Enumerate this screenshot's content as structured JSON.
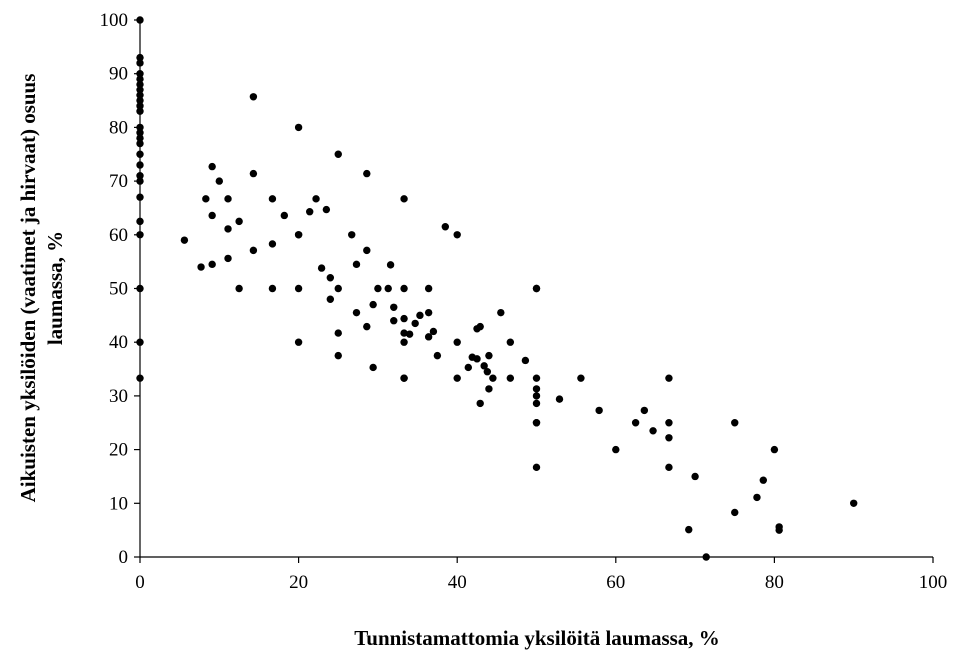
{
  "chart_data": {
    "type": "scatter",
    "title": "",
    "xlabel": "Tunnistamattomia yksilöitä laumassa, %",
    "ylabel_line1": "Aikuisten yksilöiden (vaatimet ja hirvaat) osuus",
    "ylabel_line2": "laumassa, %",
    "xlim": [
      0,
      100
    ],
    "ylim": [
      0,
      100
    ],
    "xticks": [
      0,
      20,
      40,
      60,
      80,
      100
    ],
    "yticks": [
      0,
      10,
      20,
      30,
      40,
      50,
      60,
      70,
      80,
      90,
      100
    ],
    "grid": false,
    "legend": "none",
    "marker_color": "#000000",
    "points": [
      [
        0,
        100
      ],
      [
        0,
        93
      ],
      [
        0,
        92
      ],
      [
        0,
        90
      ],
      [
        0,
        89
      ],
      [
        0,
        88
      ],
      [
        0,
        87
      ],
      [
        0,
        86
      ],
      [
        0,
        85
      ],
      [
        0,
        84
      ],
      [
        0,
        83
      ],
      [
        0,
        80
      ],
      [
        0,
        79
      ],
      [
        0,
        78
      ],
      [
        0,
        77
      ],
      [
        0,
        75
      ],
      [
        0,
        73
      ],
      [
        0,
        71
      ],
      [
        0,
        70
      ],
      [
        0,
        67
      ],
      [
        0,
        62.5
      ],
      [
        0,
        60
      ],
      [
        0,
        50
      ],
      [
        0,
        40
      ],
      [
        0,
        33.3
      ],
      [
        5.6,
        59
      ],
      [
        7.7,
        54
      ],
      [
        8.3,
        66.7
      ],
      [
        9.1,
        54.5
      ],
      [
        9.1,
        63.6
      ],
      [
        9.1,
        72.7
      ],
      [
        10,
        70
      ],
      [
        11.1,
        66.7
      ],
      [
        11.1,
        61.1
      ],
      [
        11.1,
        55.6
      ],
      [
        12.5,
        62.5
      ],
      [
        12.5,
        50
      ],
      [
        14.3,
        85.7
      ],
      [
        14.3,
        71.4
      ],
      [
        14.3,
        57.1
      ],
      [
        16.7,
        66.7
      ],
      [
        16.7,
        58.3
      ],
      [
        16.7,
        50
      ],
      [
        18.2,
        63.6
      ],
      [
        20,
        80
      ],
      [
        20,
        60
      ],
      [
        20,
        60
      ],
      [
        20,
        50
      ],
      [
        20,
        40
      ],
      [
        21.4,
        64.3
      ],
      [
        22.2,
        66.7
      ],
      [
        22.9,
        53.8
      ],
      [
        23.5,
        64.7
      ],
      [
        24,
        52
      ],
      [
        24,
        48
      ],
      [
        25,
        75
      ],
      [
        25,
        50
      ],
      [
        25,
        41.7
      ],
      [
        25,
        37.5
      ],
      [
        26.7,
        60
      ],
      [
        27.3,
        54.5
      ],
      [
        27.3,
        45.5
      ],
      [
        28.6,
        71.4
      ],
      [
        28.6,
        57.1
      ],
      [
        28.6,
        42.9
      ],
      [
        29.4,
        47
      ],
      [
        29.4,
        35.3
      ],
      [
        30,
        50
      ],
      [
        31.3,
        50
      ],
      [
        31.6,
        54.4
      ],
      [
        32,
        46.5
      ],
      [
        32,
        44
      ],
      [
        33.3,
        66.7
      ],
      [
        33.3,
        50
      ],
      [
        33.3,
        44.4
      ],
      [
        33.3,
        41.7
      ],
      [
        33.3,
        40
      ],
      [
        33.3,
        33.3
      ],
      [
        33.3,
        33.3
      ],
      [
        34,
        41.5
      ],
      [
        34.7,
        43.5
      ],
      [
        35.3,
        45
      ],
      [
        36.4,
        50
      ],
      [
        36.4,
        45.5
      ],
      [
        36.4,
        41
      ],
      [
        37,
        42
      ],
      [
        37.5,
        37.5
      ],
      [
        38.5,
        61.5
      ],
      [
        40,
        60
      ],
      [
        40,
        40
      ],
      [
        40,
        33.3
      ],
      [
        41.4,
        35.3
      ],
      [
        41.9,
        37.2
      ],
      [
        42.5,
        36.9
      ],
      [
        42.5,
        42.5
      ],
      [
        42.9,
        42.9
      ],
      [
        42.9,
        28.6
      ],
      [
        43.4,
        35.6
      ],
      [
        43.8,
        34.5
      ],
      [
        44,
        37.5
      ],
      [
        44,
        31.3
      ],
      [
        44.5,
        33.3
      ],
      [
        45.5,
        45.5
      ],
      [
        46.7,
        40
      ],
      [
        46.7,
        33.3
      ],
      [
        48.6,
        36.6
      ],
      [
        50,
        50
      ],
      [
        50,
        50
      ],
      [
        50,
        33.3
      ],
      [
        50,
        31.3
      ],
      [
        50,
        30
      ],
      [
        50,
        28.6
      ],
      [
        50,
        25
      ],
      [
        50,
        25
      ],
      [
        50,
        16.7
      ],
      [
        52.9,
        29.4
      ],
      [
        55.6,
        33.3
      ],
      [
        57.9,
        27.3
      ],
      [
        60,
        20
      ],
      [
        62.5,
        25
      ],
      [
        63.6,
        27.3
      ],
      [
        64.7,
        23.5
      ],
      [
        66.7,
        33.3
      ],
      [
        66.7,
        25
      ],
      [
        66.7,
        22.2
      ],
      [
        66.7,
        16.7
      ],
      [
        69.2,
        5.1
      ],
      [
        70,
        15
      ],
      [
        71.4,
        0
      ],
      [
        75,
        25
      ],
      [
        75,
        8.3
      ],
      [
        77.8,
        11.1
      ],
      [
        78.6,
        14.3
      ],
      [
        80,
        20
      ],
      [
        80.6,
        5.6
      ],
      [
        80.6,
        5
      ],
      [
        90,
        10
      ]
    ]
  }
}
